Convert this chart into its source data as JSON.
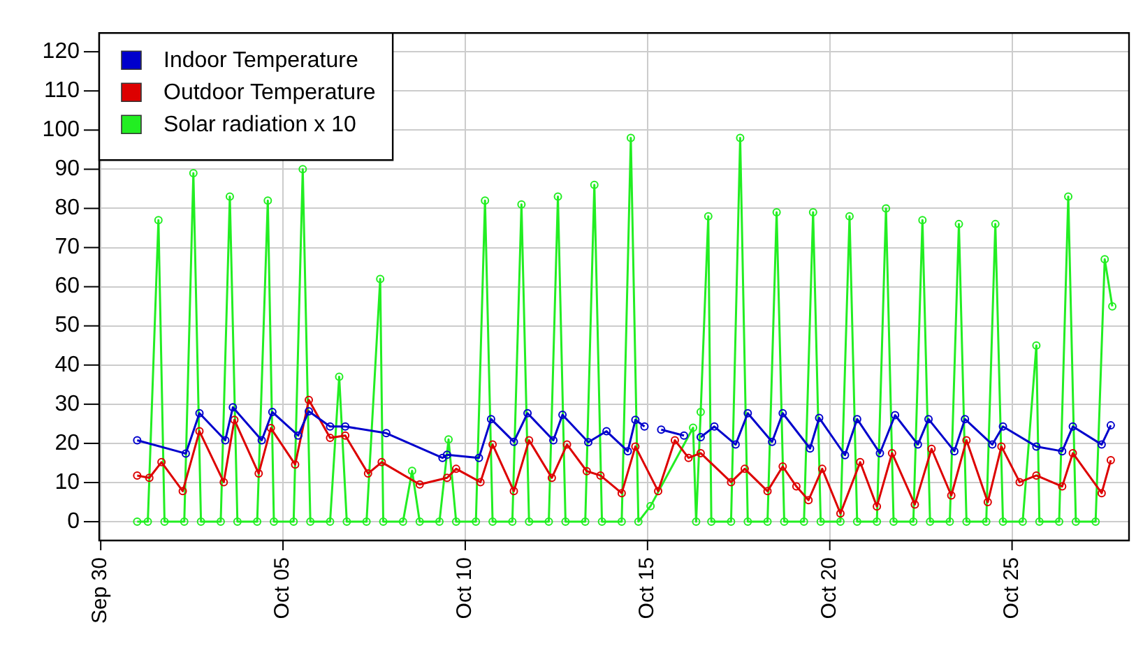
{
  "chart_data": {
    "type": "line",
    "marker": "circle",
    "line_style": "solid",
    "grid": true,
    "legend": "top left",
    "xlim": [
      "--09-29T23:00",
      "--10-28T05:00"
    ],
    "xticks": [
      {
        "value": "--09-30",
        "label": "Sep 30"
      },
      {
        "value": "--10-05",
        "label": "Oct 05"
      },
      {
        "value": "--10-10",
        "label": "Oct 10"
      },
      {
        "value": "--10-15",
        "label": "Oct 15"
      },
      {
        "value": "--10-20",
        "label": "Oct 20"
      },
      {
        "value": "--10-25",
        "label": "Oct 25"
      }
    ],
    "ylim": [
      -4.8,
      124.8
    ],
    "yticks": [
      0,
      10,
      20,
      30,
      40,
      50,
      60,
      70,
      80,
      90,
      100,
      110,
      120
    ],
    "series": [
      {
        "name": "Indoor Temperature",
        "color": "#0000cc",
        "x": [
          "--10-01T00:00",
          "--10-02T08:00",
          "--10-02T17:00",
          "--10-03T10:00",
          "--10-03T15:00",
          "--10-04T10:00",
          "--10-04T17:00",
          "--10-05T10:00",
          "--10-05T17:00",
          "--10-06T07:00",
          "--10-06T17:00",
          "--10-07T20:00",
          "--10-09T09:00",
          "--10-09T12:00",
          "--10-10T09:00",
          "--10-10T17:00",
          "--10-11T08:00",
          "--10-11T17:00",
          "--10-12T10:00",
          "--10-12T16:00",
          "--10-13T09:00",
          "--10-13T21:00",
          "--10-14T11:00",
          "--10-14T16:00",
          "--10-14T22:00",
          "--10-15T03:00",
          "--10-15T09:00",
          "--10-16T00:00",
          "--10-16T05:00",
          "--10-16T11:00",
          "--10-16T20:00",
          "--10-17T10:00",
          "--10-17T18:00",
          "--10-18T10:00",
          "--10-18T17:00",
          "--10-19T11:00",
          "--10-19T17:00",
          "--10-20T10:00",
          "--10-20T18:00",
          "--10-21T09:00",
          "--10-21T19:00",
          "--10-22T10:00",
          "--10-22T17:00",
          "--10-23T10:00",
          "--10-23T17:00",
          "--10-24T11:00",
          "--10-24T18:00",
          "--10-25T16:00",
          "--10-26T09:00",
          "--10-26T16:00",
          "--10-27T11:00",
          "--10-27T17:00"
        ],
        "values": [
          20.8,
          17.4,
          27.7,
          20.8,
          29.2,
          20.8,
          28,
          22,
          28.2,
          24.3,
          24.3,
          22.6,
          16.3,
          17.1,
          16.3,
          26.2,
          20.4,
          27.7,
          20.8,
          27.3,
          20.3,
          23.1,
          18,
          26,
          24.3,
          null,
          23.5,
          22,
          null,
          21.6,
          24.3,
          19.7,
          27.7,
          20.4,
          27.7,
          18.7,
          26.5,
          17,
          26.2,
          17.5,
          27.2,
          19.7,
          26.2,
          18,
          26.2,
          19.7,
          24.3,
          19.2,
          18,
          24.3,
          19.7,
          24.6
        ]
      },
      {
        "name": "Outdoor Temperature",
        "color": "#dd0000",
        "x": [
          "--10-01T00:00",
          "--10-01T08:00",
          "--10-01T16:00",
          "--10-02T06:00",
          "--10-02T17:00",
          "--10-03T09:00",
          "--10-03T16:00",
          "--10-04T08:00",
          "--10-04T16:00",
          "--10-05T08:00",
          "--10-05T17:00",
          "--10-06T07:00",
          "--10-06T17:00",
          "--10-07T08:00",
          "--10-07T17:00",
          "--10-08T18:00",
          "--10-09T12:00",
          "--10-09T18:00",
          "--10-10T10:00",
          "--10-10T18:00",
          "--10-11T08:00",
          "--10-11T18:00",
          "--10-12T09:00",
          "--10-12T19:00",
          "--10-13T08:00",
          "--10-13T17:00",
          "--10-14T07:00",
          "--10-14T16:00",
          "--10-15T07:00",
          "--10-15T18:00",
          "--10-16T03:00",
          "--10-16T11:00",
          "--10-17T07:00",
          "--10-17T16:00",
          "--10-18T07:00",
          "--10-18T17:00",
          "--10-19T02:00",
          "--10-19T10:00",
          "--10-19T19:00",
          "--10-20T07:00",
          "--10-20T20:00",
          "--10-21T07:00",
          "--10-21T17:00",
          "--10-22T08:00",
          "--10-22T19:00",
          "--10-23T08:00",
          "--10-23T18:00",
          "--10-24T08:00",
          "--10-24T17:00",
          "--10-25T05:00",
          "--10-25T16:00",
          "--10-26T09:00",
          "--10-26T16:00",
          "--10-27T11:00",
          "--10-27T17:00"
        ],
        "values": [
          11.8,
          11.2,
          15.2,
          7.8,
          23.1,
          10.1,
          26,
          12.3,
          23.9,
          14.6,
          31.1,
          21.4,
          22,
          12.3,
          15.2,
          9.5,
          11.2,
          13.5,
          10.1,
          19.7,
          7.8,
          20.8,
          11.2,
          19.7,
          12.9,
          11.8,
          7.3,
          19.2,
          7.8,
          20.8,
          16.3,
          17.5,
          10.1,
          13.5,
          7.8,
          14.1,
          9,
          5.5,
          13.5,
          2.1,
          15.2,
          3.9,
          17.5,
          4.4,
          18.6,
          6.7,
          20.8,
          5,
          19.2,
          10.1,
          11.8,
          9,
          17.5,
          7.3,
          15.7
        ]
      },
      {
        "name": "Solar radiation x 10",
        "color": "#22ee22",
        "x": [
          "--10-01T00:00",
          "--10-01T07:00",
          "--10-01T14:00",
          "--10-01T18:00",
          "--10-02T07:00",
          "--10-02T13:00",
          "--10-02T18:00",
          "--10-03T07:00",
          "--10-03T13:00",
          "--10-03T18:00",
          "--10-04T07:00",
          "--10-04T14:00",
          "--10-04T18:00",
          "--10-05T07:00",
          "--10-05T13:00",
          "--10-05T18:00",
          "--10-06T07:00",
          "--10-06T13:00",
          "--10-06T18:00",
          "--10-07T07:00",
          "--10-07T16:00",
          "--10-07T18:00",
          "--10-08T07:00",
          "--10-08T13:00",
          "--10-08T18:00",
          "--10-09T07:00",
          "--10-09T13:00",
          "--10-09T18:00",
          "--10-10T07:00",
          "--10-10T13:00",
          "--10-10T18:00",
          "--10-11T07:00",
          "--10-11T13:00",
          "--10-11T18:00",
          "--10-12T07:00",
          "--10-12T13:00",
          "--10-12T18:00",
          "--10-13T07:00",
          "--10-13T13:00",
          "--10-13T18:00",
          "--10-14T07:00",
          "--10-14T13:00",
          "--10-14T18:00",
          "--10-15T02:00",
          "--10-16T06:00",
          "--10-16T08:00",
          "--10-16T11:00",
          "--10-16T16:00",
          "--10-16T18:00",
          "--10-17T07:00",
          "--10-17T13:00",
          "--10-17T18:00",
          "--10-18T07:00",
          "--10-18T13:00",
          "--10-18T18:00",
          "--10-19T07:00",
          "--10-19T13:00",
          "--10-19T18:00",
          "--10-20T07:00",
          "--10-20T13:00",
          "--10-20T18:00",
          "--10-21T07:00",
          "--10-21T13:00",
          "--10-21T18:00",
          "--10-22T07:00",
          "--10-22T13:00",
          "--10-22T18:00",
          "--10-23T07:00",
          "--10-23T13:00",
          "--10-23T18:00",
          "--10-24T07:00",
          "--10-24T13:00",
          "--10-24T18:00",
          "--10-25T07:00",
          "--10-25T16:00",
          "--10-25T18:00",
          "--10-26T07:00",
          "--10-26T13:00",
          "--10-26T18:00",
          "--10-27T07:00",
          "--10-27T13:00",
          "--10-27T18:00"
        ],
        "values": [
          0,
          0,
          77,
          0,
          0,
          89,
          0,
          0,
          83,
          0,
          0,
          82,
          0,
          0,
          90,
          0,
          0,
          37,
          0,
          0,
          62,
          0,
          0,
          13,
          0,
          0,
          21,
          0,
          0,
          82,
          0,
          0,
          81,
          0,
          0,
          83,
          0,
          0,
          86,
          0,
          0,
          98,
          0,
          4,
          24,
          0,
          28,
          78,
          0,
          0,
          98,
          0,
          0,
          79,
          0,
          0,
          79,
          0,
          0,
          78,
          0,
          0,
          80,
          0,
          0,
          77,
          0,
          0,
          76,
          0,
          0,
          76,
          0,
          0,
          45,
          0,
          0,
          83,
          0,
          0,
          67,
          55
        ]
      }
    ]
  }
}
